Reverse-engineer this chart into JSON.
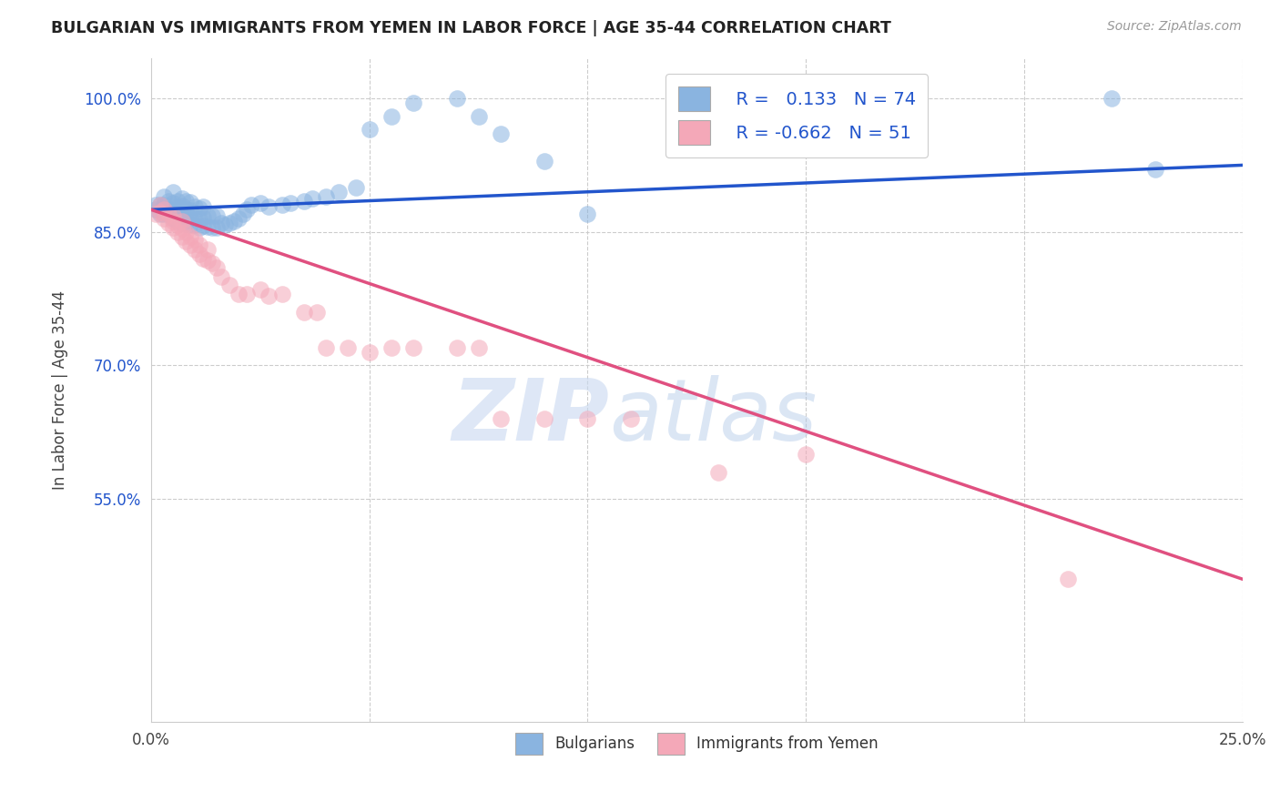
{
  "title": "BULGARIAN VS IMMIGRANTS FROM YEMEN IN LABOR FORCE | AGE 35-44 CORRELATION CHART",
  "source": "Source: ZipAtlas.com",
  "ylabel": "In Labor Force | Age 35-44",
  "xlim": [
    0.0,
    0.25
  ],
  "ylim": [
    0.3,
    1.045
  ],
  "yticks": [
    0.55,
    0.7,
    0.85,
    1.0
  ],
  "ytick_labels": [
    "55.0%",
    "70.0%",
    "85.0%",
    "100.0%"
  ],
  "xticks": [
    0.0,
    0.05,
    0.1,
    0.15,
    0.2,
    0.25
  ],
  "xtick_labels": [
    "0.0%",
    "",
    "",
    "",
    "",
    "25.0%"
  ],
  "watermark_zip": "ZIP",
  "watermark_atlas": "atlas",
  "blue_color": "#8ab4e0",
  "pink_color": "#f4a8b8",
  "blue_line_color": "#2255cc",
  "pink_line_color": "#e05080",
  "title_color": "#222222",
  "source_color": "#999999",
  "grid_color": "#cccccc",
  "blue_trend_x": [
    0.0,
    0.25
  ],
  "blue_trend_y": [
    0.875,
    0.925
  ],
  "pink_trend_x": [
    0.0,
    0.25
  ],
  "pink_trend_y": [
    0.875,
    0.46
  ],
  "blue_scatter_x": [
    0.001,
    0.001,
    0.002,
    0.002,
    0.003,
    0.003,
    0.003,
    0.003,
    0.004,
    0.004,
    0.004,
    0.005,
    0.005,
    0.005,
    0.005,
    0.006,
    0.006,
    0.006,
    0.006,
    0.007,
    0.007,
    0.007,
    0.007,
    0.007,
    0.008,
    0.008,
    0.008,
    0.008,
    0.009,
    0.009,
    0.009,
    0.009,
    0.01,
    0.01,
    0.01,
    0.011,
    0.011,
    0.011,
    0.012,
    0.012,
    0.012,
    0.013,
    0.013,
    0.014,
    0.014,
    0.015,
    0.015,
    0.016,
    0.017,
    0.018,
    0.019,
    0.02,
    0.021,
    0.022,
    0.023,
    0.025,
    0.027,
    0.03,
    0.032,
    0.035,
    0.037,
    0.04,
    0.043,
    0.047,
    0.05,
    0.055,
    0.06,
    0.07,
    0.075,
    0.08,
    0.09,
    0.1,
    0.22,
    0.23
  ],
  "blue_scatter_y": [
    0.875,
    0.88,
    0.87,
    0.88,
    0.87,
    0.875,
    0.88,
    0.89,
    0.87,
    0.875,
    0.885,
    0.865,
    0.875,
    0.882,
    0.895,
    0.862,
    0.87,
    0.878,
    0.885,
    0.86,
    0.865,
    0.872,
    0.879,
    0.888,
    0.86,
    0.868,
    0.875,
    0.885,
    0.858,
    0.866,
    0.874,
    0.883,
    0.858,
    0.865,
    0.878,
    0.855,
    0.865,
    0.876,
    0.857,
    0.866,
    0.878,
    0.856,
    0.868,
    0.855,
    0.868,
    0.855,
    0.868,
    0.86,
    0.858,
    0.86,
    0.862,
    0.865,
    0.87,
    0.875,
    0.88,
    0.882,
    0.878,
    0.88,
    0.882,
    0.885,
    0.888,
    0.89,
    0.895,
    0.9,
    0.965,
    0.98,
    0.995,
    1.0,
    0.98,
    0.96,
    0.93,
    0.87,
    1.0,
    0.92
  ],
  "pink_scatter_x": [
    0.001,
    0.002,
    0.002,
    0.003,
    0.003,
    0.004,
    0.004,
    0.005,
    0.005,
    0.005,
    0.006,
    0.006,
    0.007,
    0.007,
    0.007,
    0.008,
    0.008,
    0.009,
    0.009,
    0.01,
    0.01,
    0.011,
    0.011,
    0.012,
    0.013,
    0.013,
    0.014,
    0.015,
    0.016,
    0.018,
    0.02,
    0.022,
    0.025,
    0.027,
    0.03,
    0.035,
    0.038,
    0.04,
    0.045,
    0.05,
    0.055,
    0.06,
    0.07,
    0.075,
    0.08,
    0.09,
    0.1,
    0.11,
    0.13,
    0.15,
    0.21
  ],
  "pink_scatter_y": [
    0.87,
    0.872,
    0.88,
    0.865,
    0.875,
    0.86,
    0.87,
    0.855,
    0.862,
    0.868,
    0.85,
    0.858,
    0.845,
    0.854,
    0.862,
    0.84,
    0.85,
    0.835,
    0.845,
    0.83,
    0.842,
    0.825,
    0.835,
    0.82,
    0.818,
    0.83,
    0.815,
    0.81,
    0.8,
    0.79,
    0.78,
    0.78,
    0.785,
    0.778,
    0.78,
    0.76,
    0.76,
    0.72,
    0.72,
    0.715,
    0.72,
    0.72,
    0.72,
    0.72,
    0.64,
    0.64,
    0.64,
    0.64,
    0.58,
    0.6,
    0.46
  ]
}
